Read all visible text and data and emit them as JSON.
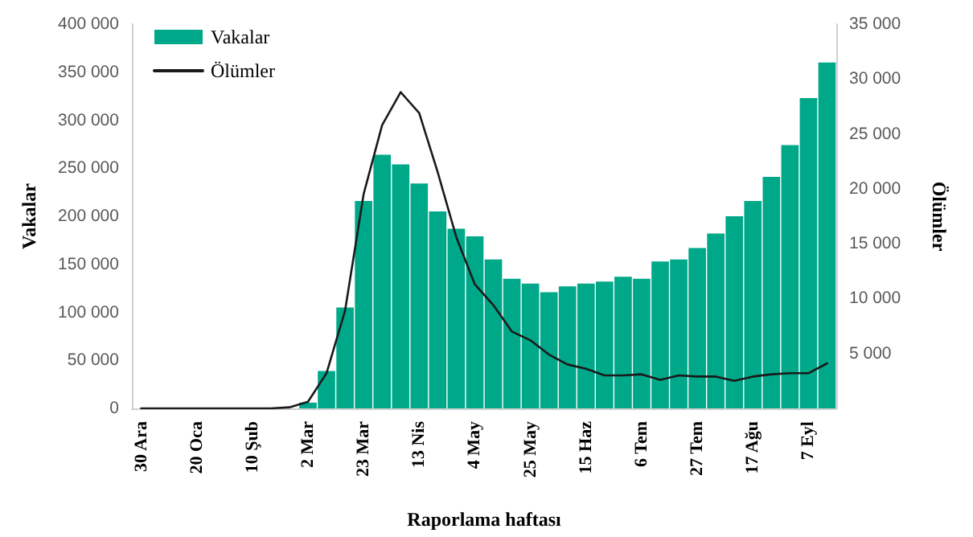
{
  "chart_data": {
    "type": "bar",
    "xlabel": "Raporlama haftası",
    "ylabel": "Vakalar",
    "y2label": "Ölümler",
    "categories": [
      "30 Ara",
      null,
      null,
      "20 Oca",
      null,
      null,
      "10 Şub",
      null,
      null,
      "2 Mar",
      null,
      null,
      "23 Mar",
      null,
      null,
      "13 Nis",
      null,
      null,
      "4 May",
      null,
      null,
      "25 May",
      null,
      null,
      "15 Haz",
      null,
      null,
      "6 Tem",
      null,
      null,
      "27 Tem",
      null,
      null,
      "17 Ağu",
      null,
      null,
      "7 Eyl",
      null
    ],
    "series": [
      {
        "name": "Vakalar",
        "color": "#00a88a",
        "values": [
          0,
          0,
          0,
          0,
          0,
          0,
          0,
          0,
          0,
          6000,
          39000,
          105000,
          216000,
          264000,
          254000,
          234000,
          205000,
          187000,
          179000,
          155000,
          135000,
          130000,
          121000,
          127000,
          130000,
          132000,
          137000,
          135000,
          153000,
          155000,
          167000,
          182000,
          200000,
          216000,
          241000,
          274000,
          323000,
          360000
        ]
      },
      {
        "name": "Ölümler",
        "type": "line",
        "axis": "y2",
        "color": "#1a1a1a",
        "values": [
          0,
          0,
          0,
          0,
          0,
          0,
          0,
          0,
          100,
          600,
          3200,
          8900,
          19500,
          25800,
          28800,
          26900,
          21500,
          15600,
          11300,
          9400,
          7000,
          6200,
          4900,
          4000,
          3600,
          3000,
          3000,
          3100,
          2600,
          3000,
          2900,
          2900,
          2500,
          2900,
          3100,
          3200,
          3200,
          4100
        ]
      }
    ],
    "ylim": [
      0,
      400000
    ],
    "yticks": [
      {
        "value": 0,
        "label": "0"
      },
      {
        "value": 50000,
        "label": "50 000"
      },
      {
        "value": 100000,
        "label": "100 000"
      },
      {
        "value": 150000,
        "label": "150 000"
      },
      {
        "value": 200000,
        "label": "200 000"
      },
      {
        "value": 250000,
        "label": "250 000"
      },
      {
        "value": 300000,
        "label": "300 000"
      },
      {
        "value": 350000,
        "label": "350 000"
      },
      {
        "value": 400000,
        "label": "400 000"
      }
    ],
    "y2lim": [
      0,
      35000
    ],
    "y2ticks": [
      {
        "value": 0,
        "label": null
      },
      {
        "value": 5000,
        "label": "5 000"
      },
      {
        "value": 10000,
        "label": "10 000"
      },
      {
        "value": 15000,
        "label": "15 000"
      },
      {
        "value": 20000,
        "label": "20 000"
      },
      {
        "value": 25000,
        "label": "25 000"
      },
      {
        "value": 30000,
        "label": "30 000"
      },
      {
        "value": 35000,
        "label": "35 000"
      }
    ],
    "grid": false,
    "legend": "top left",
    "marker": "none",
    "line_style": "solid"
  }
}
